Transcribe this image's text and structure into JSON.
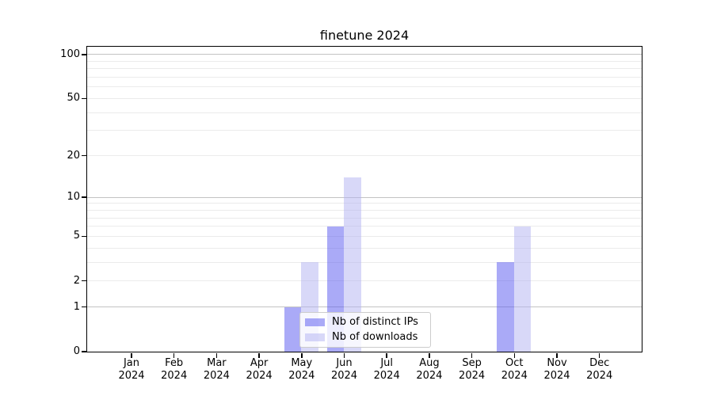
{
  "title": "finetune 2024",
  "axes": {
    "yticks": [
      "100",
      "50",
      "20",
      "10",
      "5",
      "2",
      "1",
      "0"
    ],
    "xticks": [
      {
        "m": "Jan",
        "y": "2024"
      },
      {
        "m": "Feb",
        "y": "2024"
      },
      {
        "m": "Mar",
        "y": "2024"
      },
      {
        "m": "Apr",
        "y": "2024"
      },
      {
        "m": "May",
        "y": "2024"
      },
      {
        "m": "Jun",
        "y": "2024"
      },
      {
        "m": "Jul",
        "y": "2024"
      },
      {
        "m": "Aug",
        "y": "2024"
      },
      {
        "m": "Sep",
        "y": "2024"
      },
      {
        "m": "Oct",
        "y": "2024"
      },
      {
        "m": "Nov",
        "y": "2024"
      },
      {
        "m": "Dec",
        "y": "2024"
      }
    ]
  },
  "legend": {
    "items": [
      {
        "label": "Nb of distinct IPs",
        "color": "rgba(85,85,240,0.5)",
        "rendered_hex": "#aaaaf7"
      },
      {
        "label": "Nb of downloads",
        "color": "rgba(177,177,241,0.5)",
        "rendered_hex": "#d8d8f8"
      }
    ]
  },
  "chart_data": {
    "type": "bar",
    "title": "finetune 2024",
    "categories": [
      "Jan 2024",
      "Feb 2024",
      "Mar 2024",
      "Apr 2024",
      "May 2024",
      "Jun 2024",
      "Jul 2024",
      "Aug 2024",
      "Sep 2024",
      "Oct 2024",
      "Nov 2024",
      "Dec 2024"
    ],
    "series": [
      {
        "name": "Nb of distinct IPs",
        "color": "rgba(85,85,240,0.5)",
        "values": [
          0,
          0,
          0,
          0,
          1,
          6,
          0,
          0,
          0,
          3,
          0,
          0
        ]
      },
      {
        "name": "Nb of downloads",
        "color": "rgba(177,177,241,0.5)",
        "values": [
          0,
          0,
          0,
          0,
          3,
          14,
          0,
          0,
          0,
          6,
          0,
          0
        ]
      }
    ],
    "xlabel": "",
    "ylabel": "",
    "yscale": "symlog (y proportional to log1p(value))",
    "ylim": [
      0,
      113
    ],
    "ytick_values": [
      100,
      50,
      20,
      10,
      5,
      2,
      1,
      0
    ],
    "grid": {
      "horizontal": true,
      "major_values": [
        1,
        10,
        100
      ],
      "minor_values": [
        2,
        3,
        4,
        5,
        6,
        7,
        8,
        9,
        20,
        30,
        40,
        50,
        60,
        70,
        80,
        90
      ],
      "major_color": "#c3c3c3",
      "minor_color": "#ebebeb"
    },
    "legend_position": "lower center",
    "background": "#ffffff"
  }
}
